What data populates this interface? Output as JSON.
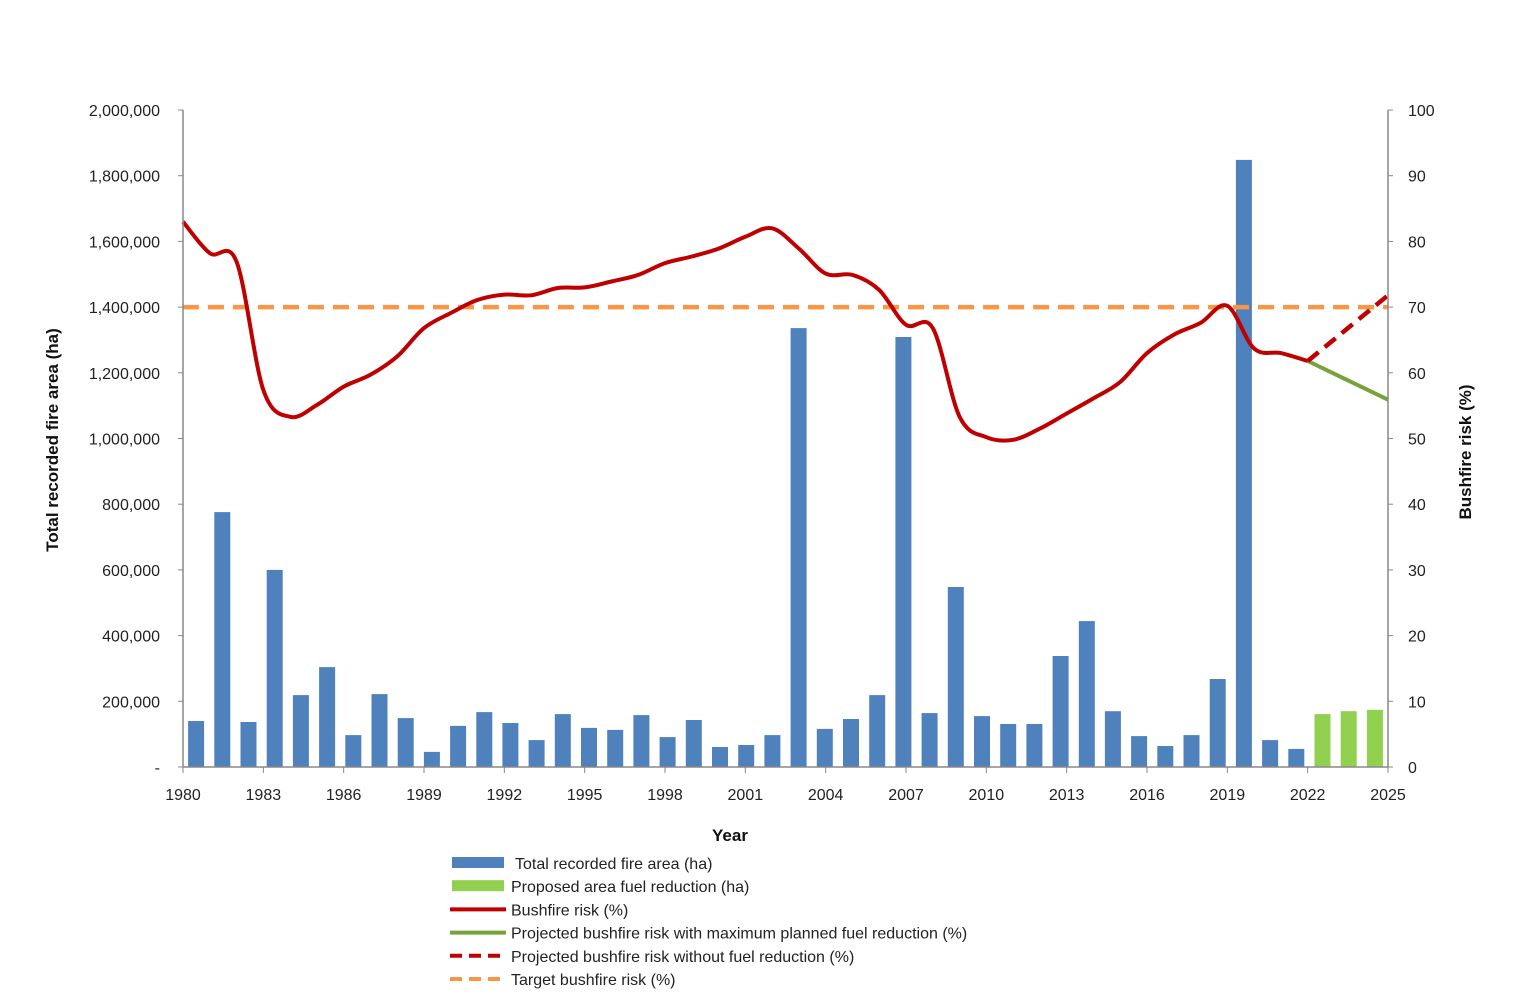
{
  "chart_data": {
    "type": "bar+line",
    "xlabel": "Year",
    "ylabel_left": "Total recorded fire area (ha)",
    "ylabel_right": "Bushfire risk (%)",
    "ylim_left": [
      0,
      2000000
    ],
    "ylim_right": [
      0,
      100
    ],
    "xlim": [
      1980,
      2025
    ],
    "grid": false,
    "legend_position": "bottom",
    "x_tick_labels": [
      "1980",
      "1983",
      "1986",
      "1989",
      "1992",
      "1995",
      "1998",
      "2001",
      "2004",
      "2007",
      "2010",
      "2013",
      "2016",
      "2019",
      "2022",
      "2025"
    ],
    "y_left_tick_labels": [
      "-",
      "200,000",
      "400,000",
      "600,000",
      "800,000",
      "1,000,000",
      "1,200,000",
      "1,400,000",
      "1,600,000",
      "1,800,000",
      "2,000,000"
    ],
    "y_right_tick_labels": [
      "0",
      "10",
      "20",
      "30",
      "40",
      "50",
      "60",
      "70",
      "80",
      "90",
      "100"
    ],
    "colors": {
      "fire_area": "#4F81BD",
      "fuel_reduction": "#92D050",
      "risk": "#C00000",
      "projected_max": "#77A33A",
      "projected_none": "#C00000",
      "target": "#F79646"
    },
    "bar_series": [
      {
        "name": "Total recorded fire area (ha)",
        "years": [
          1980,
          1981,
          1982,
          1983,
          1984,
          1985,
          1986,
          1987,
          1988,
          1989,
          1990,
          1991,
          1992,
          1993,
          1994,
          1995,
          1996,
          1997,
          1998,
          1999,
          2000,
          2001,
          2002,
          2003,
          2004,
          2005,
          2006,
          2007,
          2008,
          2009,
          2010,
          2011,
          2012,
          2013,
          2014,
          2015,
          2016,
          2017,
          2018,
          2019,
          2020,
          2021,
          2022
        ],
        "values": [
          140000,
          776000,
          137000,
          600000,
          219000,
          304000,
          97000,
          222000,
          149000,
          46000,
          125000,
          167000,
          134000,
          82000,
          161000,
          119000,
          113000,
          158000,
          91000,
          143000,
          61000,
          67000,
          97000,
          1336000,
          116000,
          146000,
          219000,
          1309000,
          164000,
          548000,
          155000,
          131000,
          131000,
          338000,
          444000,
          170000,
          94000,
          64000,
          97000,
          268000,
          1848000,
          82000,
          55000
        ]
      },
      {
        "name": "Proposed area fuel reduction (ha)",
        "years": [
          2023,
          2024,
          2025
        ],
        "values": [
          161000,
          170000,
          174000
        ]
      }
    ],
    "line_series": [
      {
        "name": "Bushfire risk (%)",
        "x": [
          1980,
          1981,
          1982,
          1983,
          1984,
          1985,
          1986,
          1987,
          1988,
          1989,
          1990,
          1991,
          1992,
          1993,
          1994,
          1995,
          1996,
          1997,
          1998,
          1999,
          2000,
          2001,
          2002,
          2003,
          2004,
          2005,
          2006,
          2007,
          2008,
          2009,
          2010,
          2011,
          2012,
          2013,
          2014,
          2015,
          2016,
          2017,
          2018,
          2019,
          2020,
          2021,
          2022
        ],
        "y": [
          83.0,
          78.2,
          76.9,
          57.4,
          53.3,
          55.1,
          57.9,
          59.7,
          62.5,
          66.8,
          69.1,
          71.1,
          71.9,
          71.8,
          72.9,
          73.0,
          73.9,
          74.9,
          76.7,
          77.7,
          78.9,
          80.7,
          82.0,
          78.9,
          75.1,
          74.9,
          72.6,
          67.3,
          66.8,
          53.3,
          50.2,
          49.8,
          51.5,
          53.8,
          56.1,
          58.6,
          63.0,
          65.8,
          67.6,
          70.2,
          63.7,
          63.0,
          61.8
        ]
      },
      {
        "name": "Projected bushfire risk with maximum planned fuel reduction (%)",
        "x": [
          2022,
          2025
        ],
        "y": [
          61.8,
          55.9
        ]
      },
      {
        "name": "Projected bushfire risk without fuel reduction (%)",
        "x": [
          2022,
          2025
        ],
        "y": [
          61.8,
          71.8
        ]
      },
      {
        "name": "Target bushfire risk (%)",
        "x": [
          1980,
          2025
        ],
        "y": [
          70,
          70
        ]
      }
    ]
  }
}
